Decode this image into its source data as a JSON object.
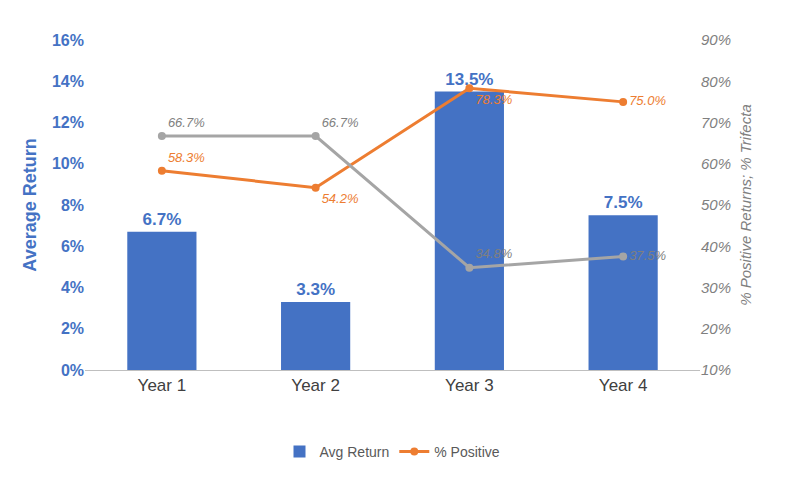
{
  "chart_data": {
    "type": "bar",
    "categories": [
      "Year 1",
      "Year 2",
      "Year 3",
      "Year 4"
    ],
    "y_label": "Average Return",
    "y2_label": "% Positive Returns; % Trifecta",
    "ylim": [
      0,
      16
    ],
    "yticks": [
      {
        "value": 0,
        "label": "0%"
      },
      {
        "value": 2,
        "label": "2%"
      },
      {
        "value": 4,
        "label": "4%"
      },
      {
        "value": 6,
        "label": "6%"
      },
      {
        "value": 8,
        "label": "8%"
      },
      {
        "value": 10,
        "label": "10%"
      },
      {
        "value": 12,
        "label": "12%"
      },
      {
        "value": 14,
        "label": "14%"
      },
      {
        "value": 16,
        "label": "16%"
      }
    ],
    "y2lim": [
      10,
      90
    ],
    "y2ticks": [
      {
        "value": 10,
        "label": "10%"
      },
      {
        "value": 20,
        "label": "20%"
      },
      {
        "value": 30,
        "label": "30%"
      },
      {
        "value": 40,
        "label": "40%"
      },
      {
        "value": 50,
        "label": "50%"
      },
      {
        "value": 60,
        "label": "60%"
      },
      {
        "value": 70,
        "label": "70%"
      },
      {
        "value": 80,
        "label": "80%"
      },
      {
        "value": 90,
        "label": "90%"
      }
    ],
    "grid": false,
    "legend": "bottom",
    "series": [
      {
        "name": "Avg Return",
        "type": "bar",
        "color": "#4472c4",
        "values": [
          6.7,
          3.3,
          13.5,
          7.5
        ],
        "value_labels": [
          "6.7%",
          "3.3%",
          "13.5%",
          "7.5%"
        ],
        "data_labels": true
      },
      {
        "name": "% Positive",
        "type": "line",
        "axis": "y2",
        "color": "#ed7d31",
        "marker": "circle",
        "values": [
          58.3,
          54.2,
          78.3,
          75.0
        ],
        "value_labels": [
          "58.3%",
          "54.2%",
          "78.3%",
          "75.0%"
        ],
        "data_labels": true
      },
      {
        "type": "line",
        "axis": "y2",
        "color": "#a5a5a5",
        "marker": "circle",
        "values": [
          66.7,
          66.7,
          34.8,
          37.5
        ],
        "value_labels": [
          "66.7%",
          "66.7%",
          "34.8%",
          "37.5%"
        ],
        "data_labels": true
      }
    ]
  }
}
